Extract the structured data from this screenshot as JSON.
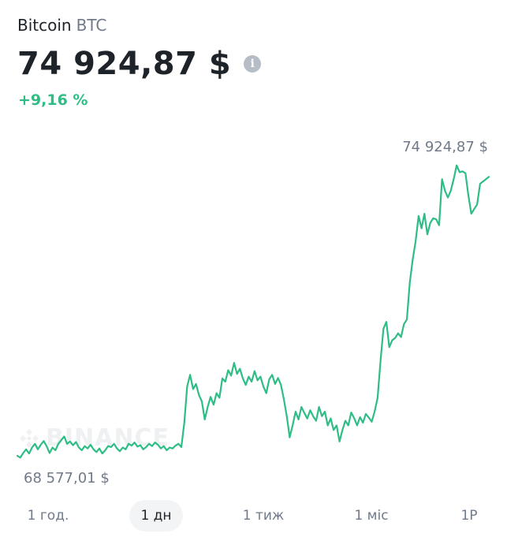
{
  "header": {
    "coin_name": "Bitcoin",
    "ticker": "BTC",
    "price": "74 924,87 $",
    "info_icon": "info-icon",
    "change": "+9,16 %"
  },
  "chart": {
    "max_label": "74 924,87 $",
    "min_label": "68 577,01 $",
    "watermark": "BINANCE",
    "line_color": "#2ebd85",
    "change_color": "#2ebd85"
  },
  "chart_data": {
    "type": "line",
    "title": "",
    "xlabel": "",
    "ylabel": "",
    "ylim": [
      68400,
      75150
    ],
    "series": [
      {
        "values": [
          68640,
          68600,
          68700,
          68780,
          68690,
          68820,
          68900,
          68780,
          68880,
          68960,
          68850,
          68700,
          68820,
          68760,
          68900,
          68980,
          69060,
          68900,
          68950,
          68870,
          68940,
          68820,
          68760,
          68850,
          68800,
          68880,
          68780,
          68720,
          68800,
          68690,
          68760,
          68850,
          68830,
          68900,
          68800,
          68740,
          68820,
          68780,
          68900,
          68860,
          68930,
          68840,
          68870,
          68780,
          68830,
          68900,
          68850,
          68930,
          68880,
          68800,
          68850,
          68760,
          68820,
          68800,
          68860,
          68900,
          68830,
          69350,
          70150,
          70400,
          70090,
          70200,
          69960,
          69820,
          69430,
          69700,
          69920,
          69750,
          70000,
          69900,
          70320,
          70250,
          70500,
          70380,
          70660,
          70420,
          70530,
          70320,
          70180,
          70360,
          70250,
          70480,
          70280,
          70360,
          70150,
          70000,
          70300,
          70400,
          70200,
          70330,
          70180,
          69870,
          69500,
          69040,
          69300,
          69600,
          69430,
          69700,
          69570,
          69450,
          69630,
          69500,
          69400,
          69700,
          69500,
          69600,
          69300,
          69450,
          69200,
          69300,
          68950,
          69200,
          69400,
          69300,
          69580,
          69460,
          69300,
          69480,
          69360,
          69550,
          69470,
          69380,
          69600,
          69900,
          70700,
          71400,
          71550,
          71000,
          71150,
          71200,
          71300,
          71220,
          71500,
          71600,
          72400,
          72900,
          73300,
          73850,
          73580,
          73900,
          73450,
          73700,
          73800,
          73780,
          73650,
          74650,
          74400,
          74250,
          74400,
          74650,
          74950,
          74800,
          74820,
          74780,
          74300,
          73900,
          74000,
          74100,
          74550,
          74600,
          74650,
          74700
        ]
      }
    ]
  },
  "tabs": [
    {
      "label": "1 год.",
      "active": false
    },
    {
      "label": "1 дн",
      "active": true
    },
    {
      "label": "1 тиж",
      "active": false
    },
    {
      "label": "1 міс",
      "active": false
    },
    {
      "label": "1Р",
      "active": false
    }
  ]
}
